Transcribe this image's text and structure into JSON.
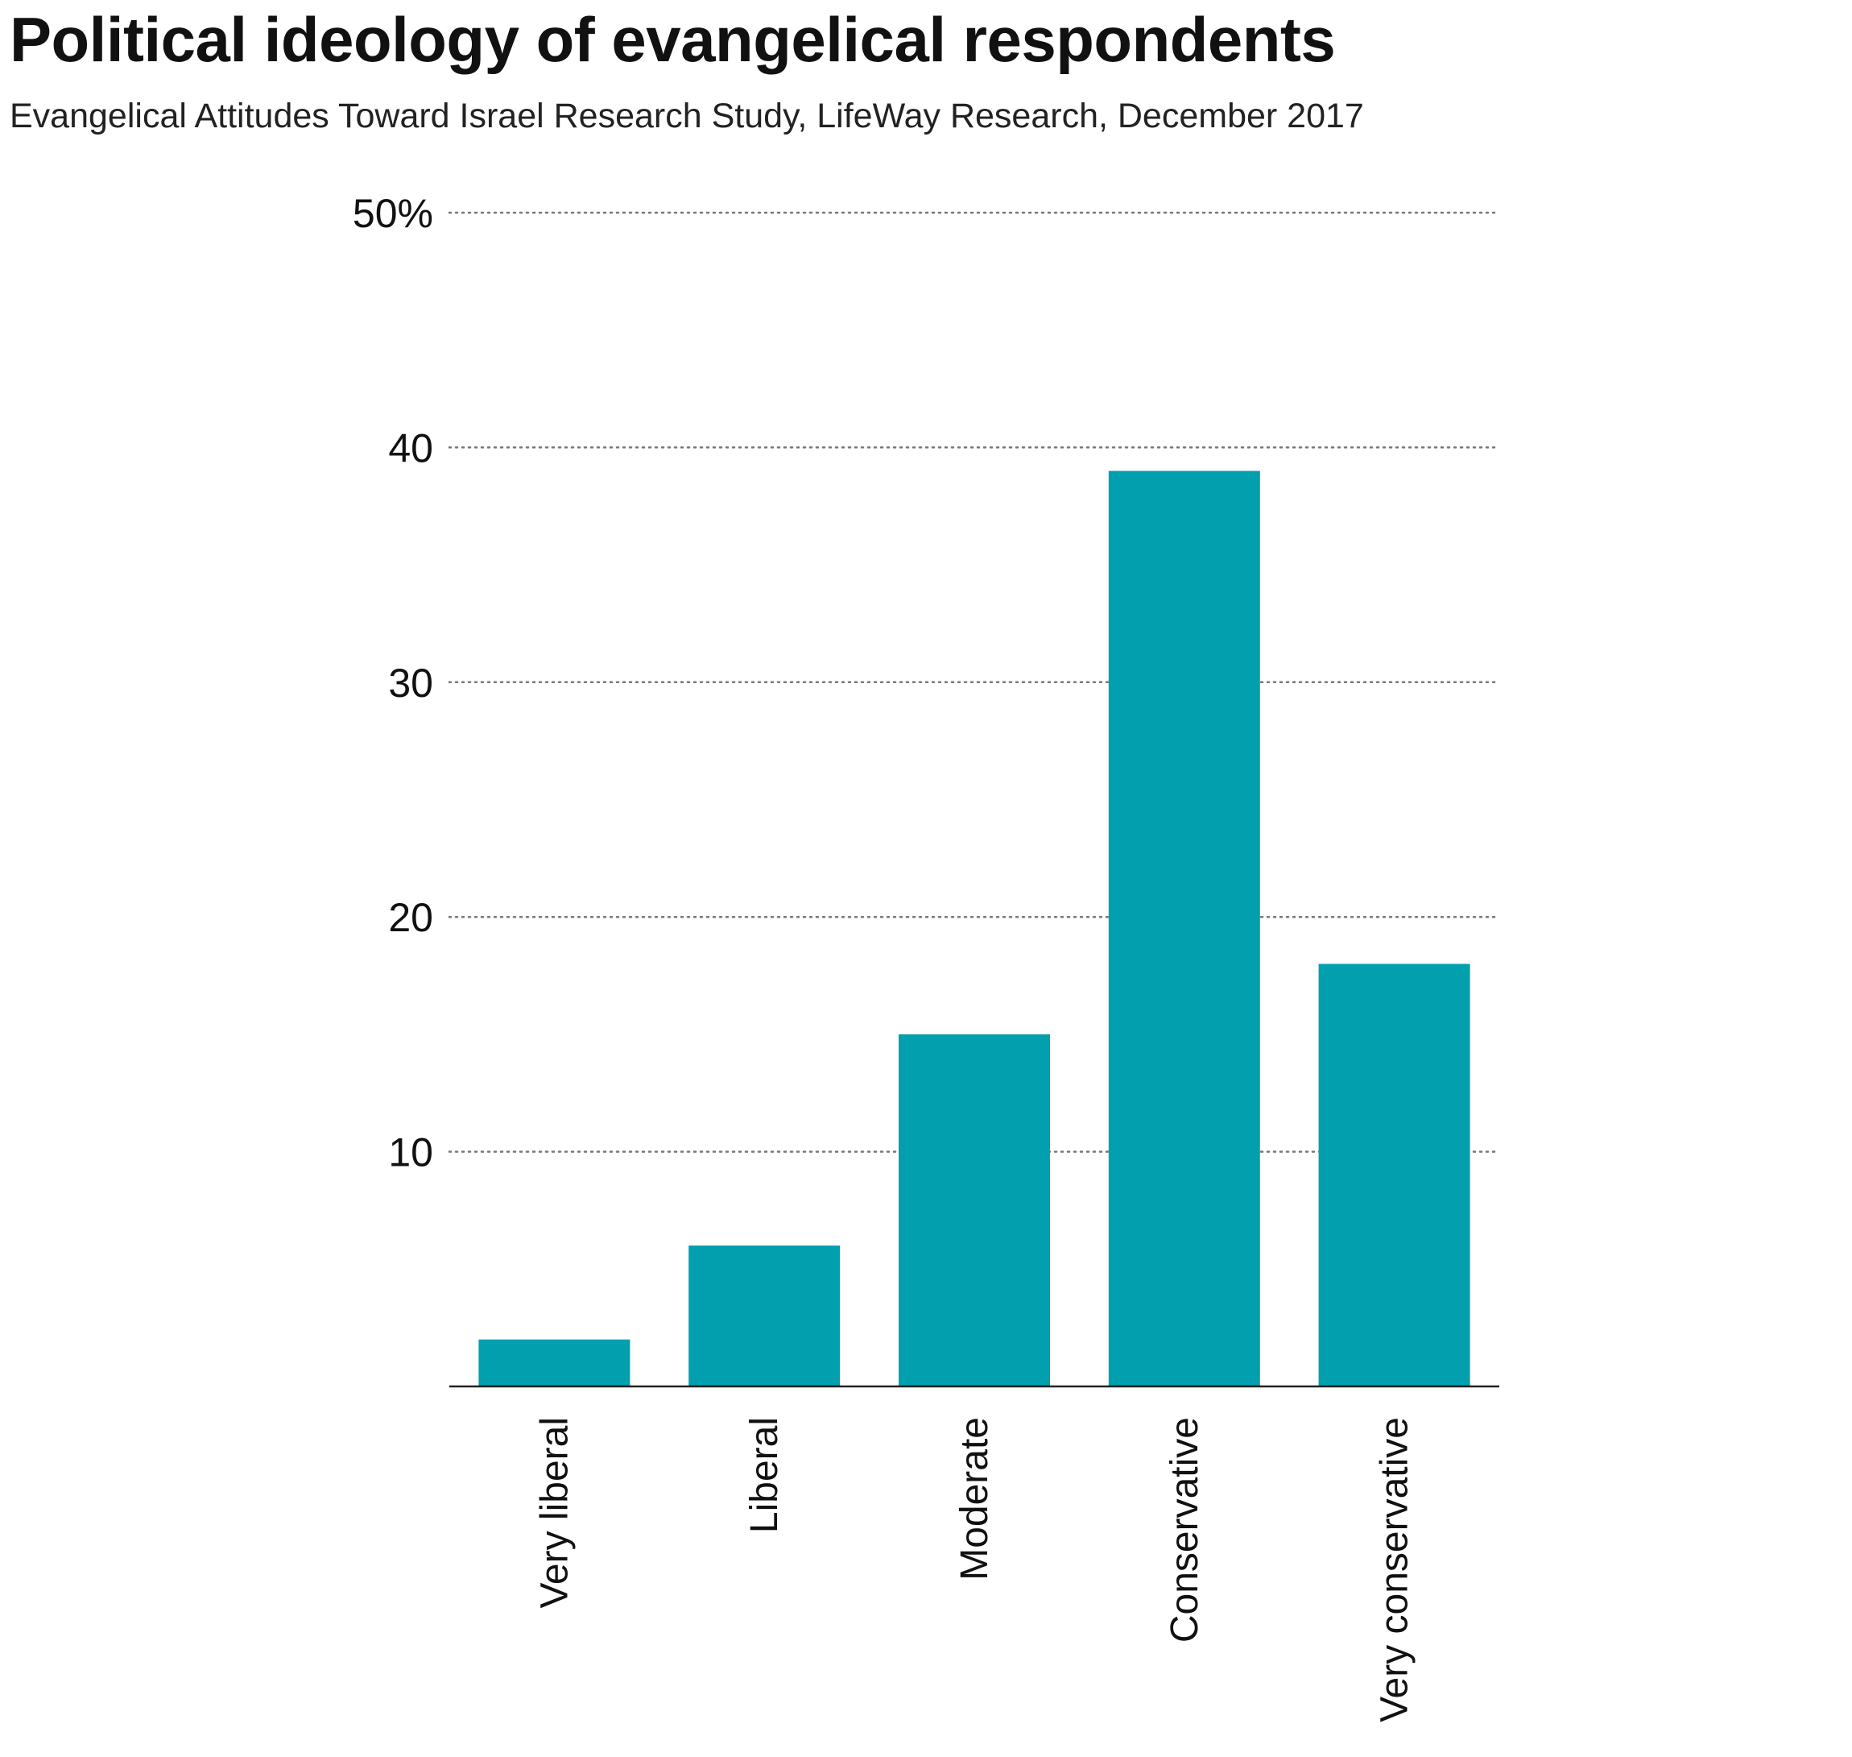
{
  "title": "Political ideology of evangelical respondents",
  "subtitle": "Evangelical Attitudes Toward Israel Research Study, LifeWay Research, December 2017",
  "colors": {
    "bar": "#029fae",
    "text": "#111111",
    "grid": "#777777",
    "axis": "#222222"
  },
  "chart_data": {
    "type": "bar",
    "categories": [
      "Very liberal",
      "Liberal",
      "Moderate",
      "Conservative",
      "Very conservative"
    ],
    "values": [
      2,
      6,
      15,
      39,
      18
    ],
    "yticks": [
      10,
      20,
      30,
      40,
      50
    ],
    "ytick_labels": [
      "10",
      "20",
      "30",
      "40",
      "50%"
    ],
    "ylim": [
      0,
      50
    ],
    "grid": true,
    "grid_style": "dotted",
    "title": "Political ideology of evangelical respondents",
    "subtitle": "Evangelical Attitudes Toward Israel Research Study, LifeWay Research, December 2017",
    "xlabel": "",
    "ylabel": ""
  }
}
